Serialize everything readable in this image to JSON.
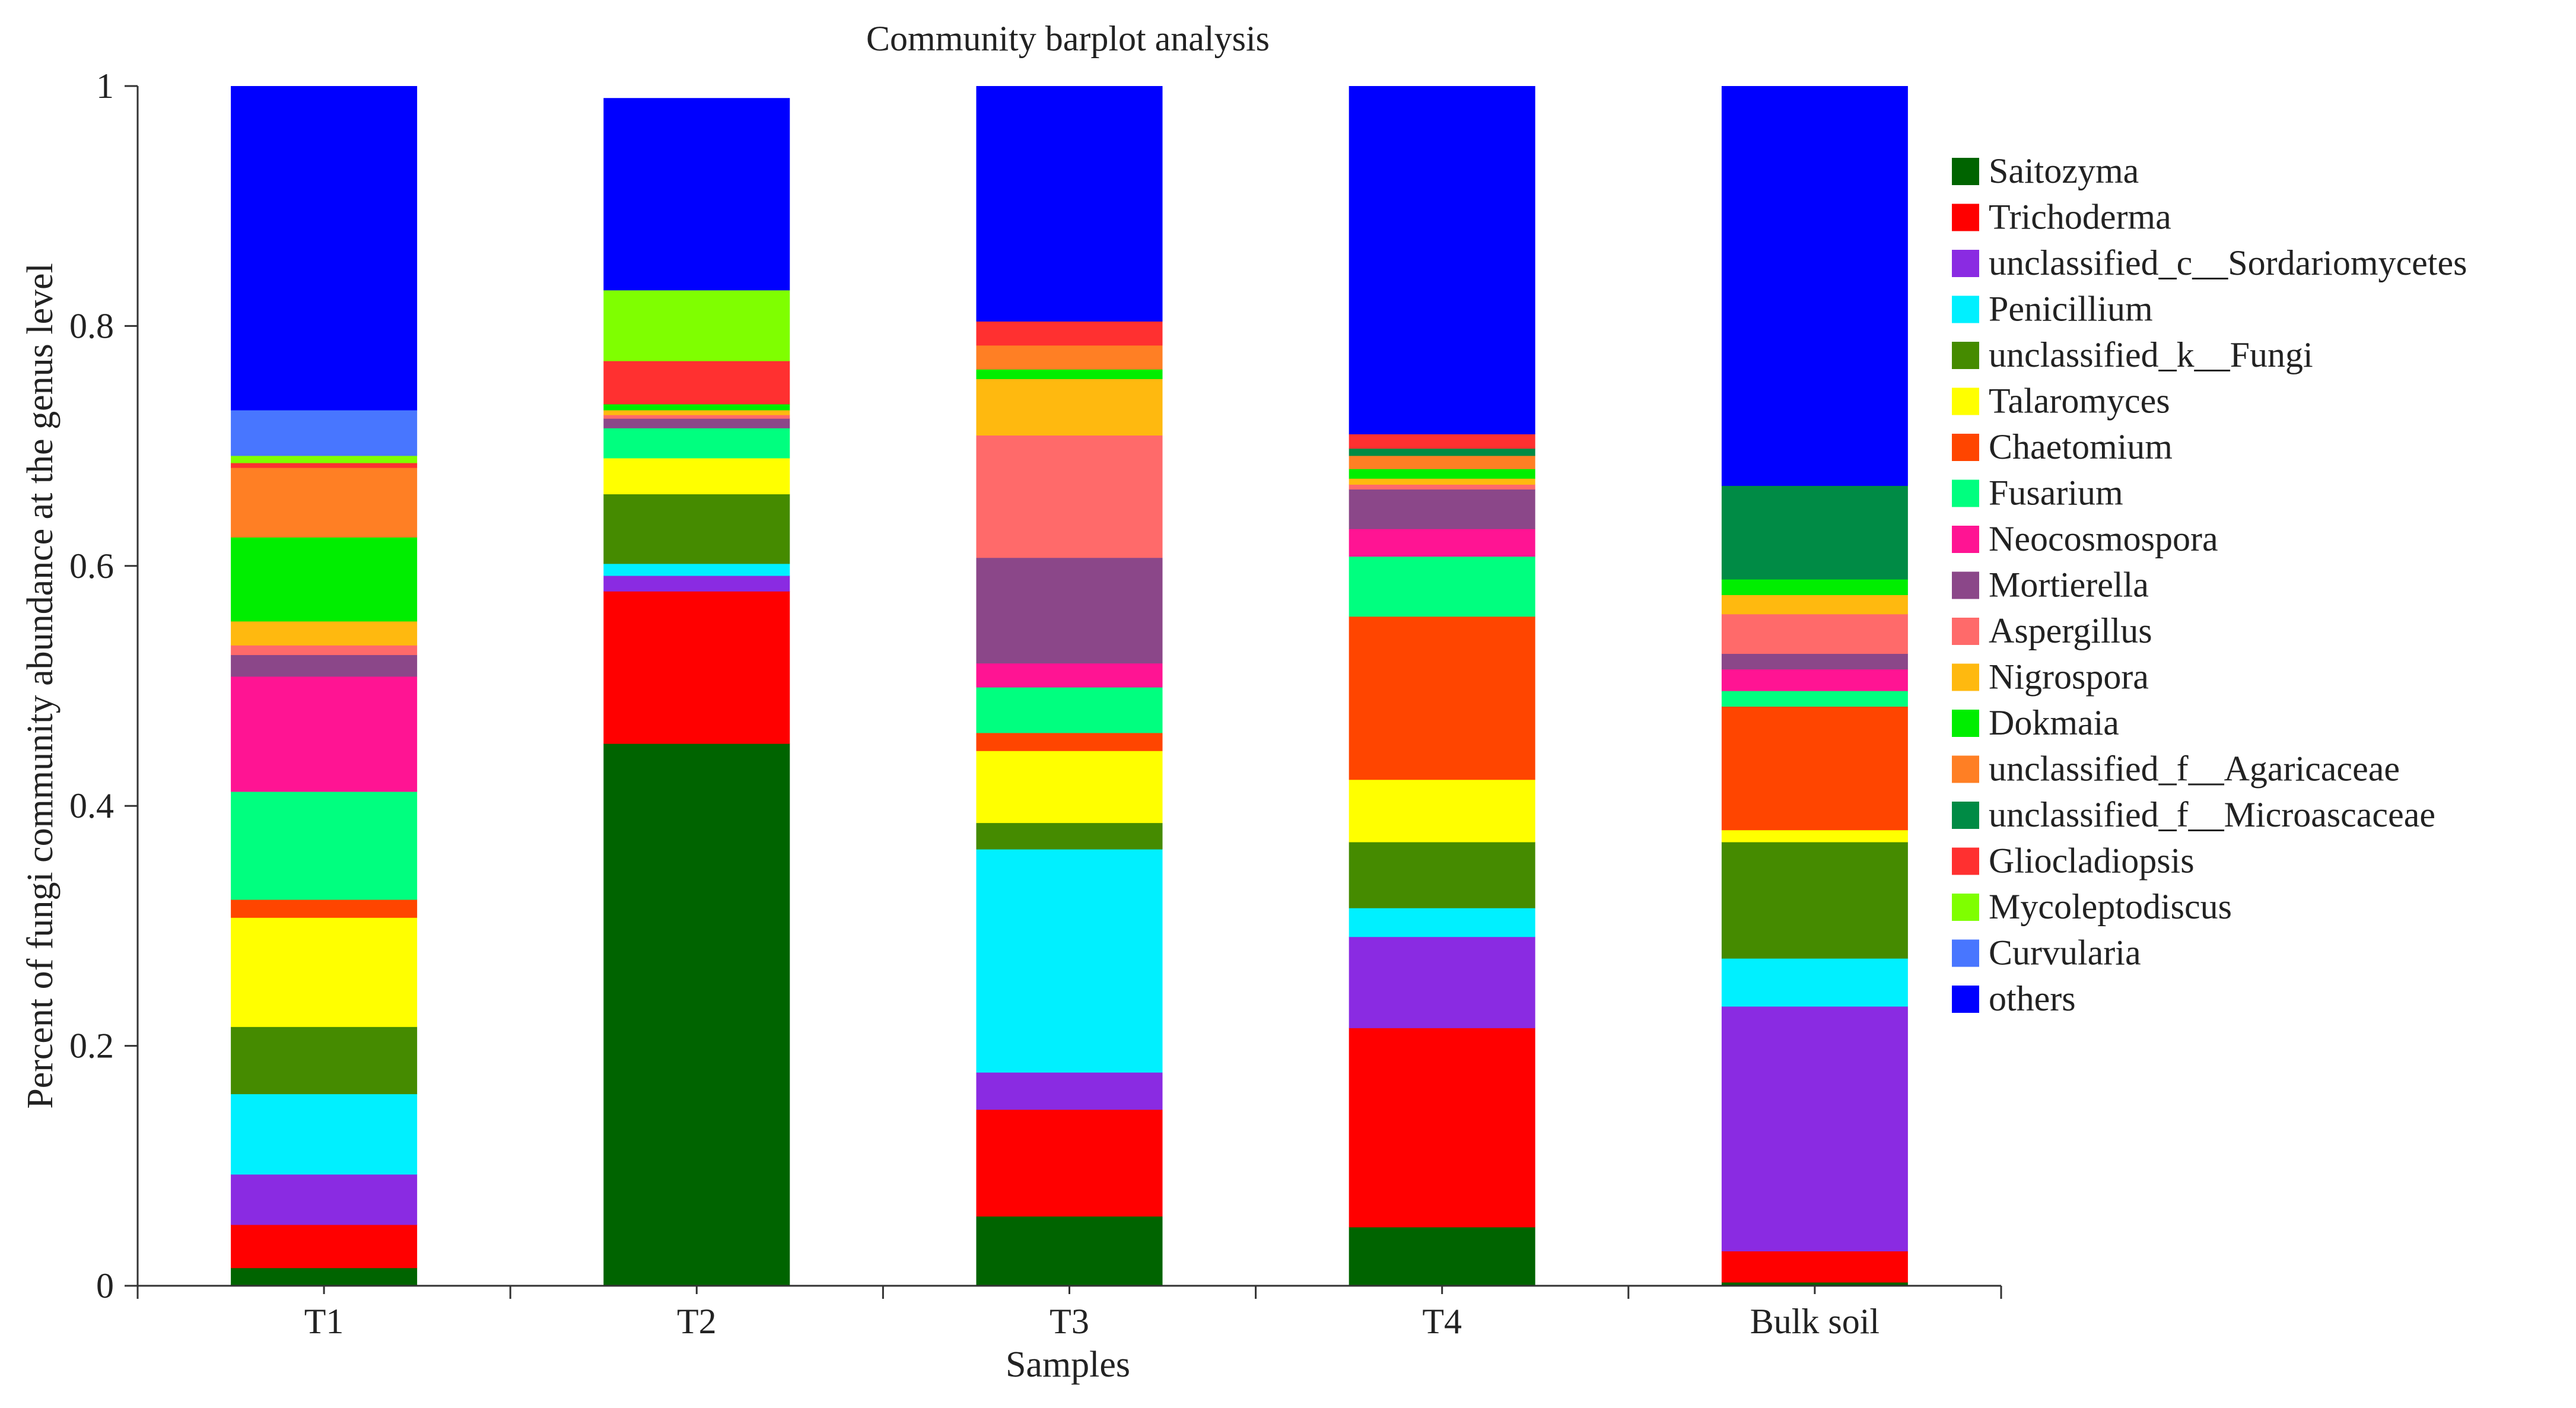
{
  "chart_data": {
    "type": "stacked-bar",
    "title": "Community barplot analysis",
    "xlabel": "Samples",
    "ylabel": "Percent of fungi community abundance at the genus level",
    "ylim": [
      0,
      1
    ],
    "yticks": [
      "0",
      "0.2",
      "0.4",
      "0.6",
      "0.8",
      "1"
    ],
    "yticks_values": [
      0,
      0.2,
      0.4,
      0.6,
      0.8,
      1
    ],
    "legend_position": "right",
    "categories": [
      "T1",
      "T2",
      "T3",
      "T4",
      "Bulk soil"
    ],
    "series": [
      {
        "name": "Saitozyma",
        "color": "#006400",
        "values": [
          0.015,
          0.452,
          0.058,
          0.049,
          0.003
        ]
      },
      {
        "name": "Trichoderma",
        "color": "#ff0000",
        "values": [
          0.036,
          0.127,
          0.089,
          0.166,
          0.026
        ]
      },
      {
        "name": "unclassified_c__Sordariomycetes",
        "color": "#8a2be2",
        "values": [
          0.042,
          0.013,
          0.031,
          0.076,
          0.204
        ]
      },
      {
        "name": "Penicillium",
        "color": "#00f0ff",
        "values": [
          0.067,
          0.01,
          0.186,
          0.024,
          0.04
        ]
      },
      {
        "name": "unclassified_k__Fungi",
        "color": "#458b00",
        "values": [
          0.056,
          0.058,
          0.022,
          0.055,
          0.097
        ]
      },
      {
        "name": "Talaromyces",
        "color": "#ffff00",
        "values": [
          0.091,
          0.03,
          0.06,
          0.052,
          0.01
        ]
      },
      {
        "name": "Chaetomium",
        "color": "#ff4500",
        "values": [
          0.015,
          0.0,
          0.015,
          0.136,
          0.103
        ]
      },
      {
        "name": "Fusarium",
        "color": "#00ff7f",
        "values": [
          0.09,
          0.025,
          0.038,
          0.05,
          0.013
        ]
      },
      {
        "name": "Neocosmospora",
        "color": "#ff1493",
        "values": [
          0.096,
          0.0,
          0.02,
          0.023,
          0.018
        ]
      },
      {
        "name": "Mortierella",
        "color": "#8b4789",
        "values": [
          0.018,
          0.008,
          0.088,
          0.033,
          0.013
        ]
      },
      {
        "name": "Aspergillus",
        "color": "#ff6a6a",
        "values": [
          0.008,
          0.003,
          0.102,
          0.004,
          0.033
        ]
      },
      {
        "name": "Nigrospora",
        "color": "#ffb90f",
        "values": [
          0.02,
          0.004,
          0.047,
          0.005,
          0.016
        ]
      },
      {
        "name": "Dokmaia",
        "color": "#00ee00",
        "values": [
          0.07,
          0.005,
          0.008,
          0.008,
          0.013
        ]
      },
      {
        "name": "unclassified_f__Agaricaceae",
        "color": "#ff7f24",
        "values": [
          0.058,
          0.0,
          0.02,
          0.011,
          0.0
        ]
      },
      {
        "name": "unclassified_f__Microascaceae",
        "color": "#008b45",
        "values": [
          0.0,
          0.0,
          0.0,
          0.006,
          0.078
        ]
      },
      {
        "name": "Gliocladiopsis",
        "color": "#ff3030",
        "values": [
          0.004,
          0.036,
          0.02,
          0.012,
          0.0
        ]
      },
      {
        "name": "Mycoleptodiscus",
        "color": "#7fff00",
        "values": [
          0.006,
          0.059,
          0.0,
          0.0,
          0.0
        ]
      },
      {
        "name": "Curvularia",
        "color": "#4876ff",
        "values": [
          0.038,
          0.0,
          0.0,
          0.0,
          0.0
        ]
      },
      {
        "name": "others",
        "color": "#0000ff",
        "values": [
          0.27,
          0.16,
          0.196,
          0.29,
          0.333
        ]
      }
    ]
  }
}
